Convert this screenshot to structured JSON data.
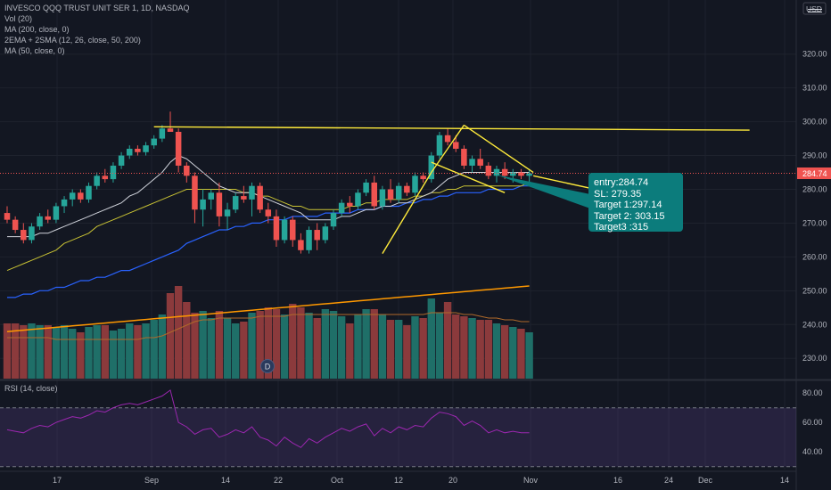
{
  "legend": {
    "symbol": "INVESCO QQQ TRUST UNIT SER 1, 1D, NASDAQ",
    "vol": "Vol (20)",
    "ma200": "MA (200, close, 0)",
    "ema_sma": "2EMA + 2SMA (12, 26, close, 50, 200)",
    "ma50": "MA (50, close, 0)",
    "rsi": "RSI (14, close)"
  },
  "currency": "USD",
  "last_price_label": "284.74",
  "event_badge": "D",
  "callout": {
    "lines": [
      "entry:284.74",
      "SL: 279.35",
      "Target 1:297.14",
      "Target 2: 303.15",
      "Target3 :315"
    ]
  },
  "colors": {
    "background": "#131722",
    "up": "#26a69a",
    "down": "#ef5350",
    "trendline": "#ffeb3b",
    "ma_blue": "#2962ff",
    "ma_yellow": "#c9c334",
    "ema_white": "#d1d4dc",
    "vol_ma": "#ff9800",
    "rsi_line": "#9c27b0",
    "callout_bg": "#0c7c7c"
  },
  "chart_data": {
    "type": "candlestick",
    "price_axis": {
      "ticks": [
        320,
        310,
        300,
        290,
        280,
        270,
        260,
        250,
        240,
        230
      ],
      "range": [
        224,
        336
      ]
    },
    "rsi_axis": {
      "ticks": [
        80,
        60,
        40
      ],
      "range": [
        28,
        88
      ],
      "levels": [
        70,
        30
      ]
    },
    "x_axis_labels": [
      "17",
      "Sep",
      "14",
      "22",
      "Oct",
      "12",
      "20",
      "Nov",
      "16",
      "24",
      "Dec",
      "14"
    ],
    "candles": [
      {
        "o": 273,
        "h": 275,
        "l": 270,
        "c": 271
      },
      {
        "o": 271,
        "h": 272,
        "l": 267,
        "c": 268
      },
      {
        "o": 268,
        "h": 270,
        "l": 264,
        "c": 265
      },
      {
        "o": 265,
        "h": 270,
        "l": 264,
        "c": 269
      },
      {
        "o": 269,
        "h": 273,
        "l": 268,
        "c": 272
      },
      {
        "o": 272,
        "h": 274,
        "l": 270,
        "c": 271
      },
      {
        "o": 271,
        "h": 276,
        "l": 270,
        "c": 275
      },
      {
        "o": 275,
        "h": 278,
        "l": 273,
        "c": 277
      },
      {
        "o": 277,
        "h": 280,
        "l": 275,
        "c": 279
      },
      {
        "o": 279,
        "h": 280,
        "l": 276,
        "c": 277
      },
      {
        "o": 277,
        "h": 282,
        "l": 276,
        "c": 281
      },
      {
        "o": 281,
        "h": 285,
        "l": 280,
        "c": 284
      },
      {
        "o": 284,
        "h": 286,
        "l": 282,
        "c": 283
      },
      {
        "o": 283,
        "h": 288,
        "l": 282,
        "c": 287
      },
      {
        "o": 287,
        "h": 291,
        "l": 286,
        "c": 290
      },
      {
        "o": 290,
        "h": 293,
        "l": 289,
        "c": 292
      },
      {
        "o": 292,
        "h": 293,
        "l": 290,
        "c": 291
      },
      {
        "o": 291,
        "h": 294,
        "l": 290,
        "c": 293
      },
      {
        "o": 293,
        "h": 296,
        "l": 292,
        "c": 295
      },
      {
        "o": 295,
        "h": 299,
        "l": 294,
        "c": 298
      },
      {
        "o": 298,
        "h": 303,
        "l": 297,
        "c": 297
      },
      {
        "o": 297,
        "h": 298,
        "l": 285,
        "c": 287
      },
      {
        "o": 287,
        "h": 288,
        "l": 282,
        "c": 284
      },
      {
        "o": 284,
        "h": 285,
        "l": 270,
        "c": 274
      },
      {
        "o": 274,
        "h": 280,
        "l": 269,
        "c": 277
      },
      {
        "o": 277,
        "h": 280,
        "l": 274,
        "c": 279
      },
      {
        "o": 279,
        "h": 282,
        "l": 269,
        "c": 272
      },
      {
        "o": 272,
        "h": 276,
        "l": 268,
        "c": 274
      },
      {
        "o": 274,
        "h": 279,
        "l": 273,
        "c": 278
      },
      {
        "o": 278,
        "h": 281,
        "l": 276,
        "c": 277
      },
      {
        "o": 277,
        "h": 282,
        "l": 272,
        "c": 281
      },
      {
        "o": 281,
        "h": 282,
        "l": 273,
        "c": 274
      },
      {
        "o": 274,
        "h": 276,
        "l": 270,
        "c": 272
      },
      {
        "o": 272,
        "h": 274,
        "l": 263,
        "c": 265
      },
      {
        "o": 265,
        "h": 272,
        "l": 264,
        "c": 271
      },
      {
        "o": 271,
        "h": 272,
        "l": 263,
        "c": 265
      },
      {
        "o": 265,
        "h": 267,
        "l": 261,
        "c": 262
      },
      {
        "o": 262,
        "h": 269,
        "l": 261,
        "c": 268
      },
      {
        "o": 268,
        "h": 270,
        "l": 262,
        "c": 265
      },
      {
        "o": 265,
        "h": 270,
        "l": 264,
        "c": 269
      },
      {
        "o": 269,
        "h": 274,
        "l": 268,
        "c": 273
      },
      {
        "o": 273,
        "h": 277,
        "l": 272,
        "c": 276
      },
      {
        "o": 276,
        "h": 278,
        "l": 273,
        "c": 275
      },
      {
        "o": 275,
        "h": 280,
        "l": 274,
        "c": 279
      },
      {
        "o": 279,
        "h": 283,
        "l": 278,
        "c": 282
      },
      {
        "o": 282,
        "h": 284,
        "l": 274,
        "c": 275
      },
      {
        "o": 275,
        "h": 281,
        "l": 274,
        "c": 280
      },
      {
        "o": 280,
        "h": 283,
        "l": 276,
        "c": 277
      },
      {
        "o": 277,
        "h": 282,
        "l": 276,
        "c": 281
      },
      {
        "o": 281,
        "h": 282,
        "l": 278,
        "c": 279
      },
      {
        "o": 279,
        "h": 285,
        "l": 278,
        "c": 284
      },
      {
        "o": 284,
        "h": 285,
        "l": 282,
        "c": 283
      },
      {
        "o": 283,
        "h": 291,
        "l": 282,
        "c": 290
      },
      {
        "o": 290,
        "h": 297,
        "l": 289,
        "c": 296
      },
      {
        "o": 296,
        "h": 298,
        "l": 293,
        "c": 294
      },
      {
        "o": 294,
        "h": 296,
        "l": 291,
        "c": 292
      },
      {
        "o": 292,
        "h": 293,
        "l": 286,
        "c": 287
      },
      {
        "o": 287,
        "h": 290,
        "l": 285,
        "c": 289
      },
      {
        "o": 289,
        "h": 292,
        "l": 286,
        "c": 287
      },
      {
        "o": 287,
        "h": 288,
        "l": 283,
        "c": 284
      },
      {
        "o": 284,
        "h": 287,
        "l": 282,
        "c": 286
      },
      {
        "o": 286,
        "h": 288,
        "l": 283,
        "c": 284
      },
      {
        "o": 284,
        "h": 286,
        "l": 282,
        "c": 285
      },
      {
        "o": 285,
        "h": 286,
        "l": 283,
        "c": 284
      },
      {
        "o": 284,
        "h": 286,
        "l": 282,
        "c": 284.74
      }
    ],
    "volume": [
      31,
      31,
      30,
      31,
      30,
      30,
      29,
      30,
      28,
      26,
      29,
      30,
      30,
      27,
      28,
      31,
      30,
      31,
      33,
      36,
      48,
      52,
      43,
      37,
      38,
      34,
      38,
      34,
      31,
      32,
      37,
      38,
      40,
      39,
      36,
      42,
      40,
      37,
      34,
      39,
      38,
      35,
      31,
      36,
      39,
      39,
      36,
      33,
      33,
      30,
      35,
      34,
      45,
      37,
      43,
      36,
      35,
      34,
      33,
      33,
      31,
      30,
      29,
      28,
      26
    ],
    "volume_scale_max": 55,
    "ema_white": [
      266,
      266,
      266,
      266,
      267,
      267,
      268,
      269,
      270,
      271,
      272,
      273,
      274,
      275,
      276,
      278,
      279,
      281,
      283,
      285,
      288,
      290,
      289,
      287,
      285,
      283,
      281,
      280,
      279,
      279,
      279,
      278,
      277,
      276,
      275,
      274,
      273,
      271,
      271,
      271,
      271,
      272,
      272,
      273,
      274,
      274,
      275,
      275,
      276,
      276,
      277,
      278,
      279,
      281,
      283,
      284,
      285,
      285,
      285,
      285,
      285,
      285,
      285,
      285,
      285
    ],
    "sma50_yellow": [
      256,
      257,
      258,
      259,
      260,
      261,
      262,
      264,
      265,
      266,
      267,
      269,
      270,
      271,
      272,
      273,
      274,
      275,
      276,
      277,
      278,
      279,
      280,
      280,
      280,
      280,
      280,
      280,
      280,
      279,
      279,
      278,
      278,
      277,
      276,
      275,
      275,
      274,
      274,
      274,
      274,
      274,
      275,
      275,
      276,
      276,
      277,
      277,
      277,
      277,
      278,
      278,
      279,
      279,
      280,
      280,
      281,
      281,
      281,
      281,
      281,
      281,
      281,
      281,
      282
    ],
    "ma50_blue": [
      248,
      248,
      249,
      249,
      250,
      250,
      251,
      251,
      252,
      253,
      253,
      254,
      254,
      255,
      256,
      256,
      257,
      258,
      259,
      260,
      261,
      262,
      264,
      265,
      266,
      267,
      268,
      268,
      269,
      269,
      270,
      270,
      271,
      271,
      271,
      272,
      272,
      272,
      272,
      273,
      273,
      273,
      273,
      274,
      274,
      274,
      275,
      275,
      275,
      276,
      276,
      277,
      277,
      278,
      278,
      279,
      279,
      279,
      279,
      280,
      280,
      280,
      280,
      281,
      281
    ],
    "vol_ma_orange": [
      26.4,
      26.8,
      27.2,
      27.6,
      28.0,
      28.4,
      28.8,
      29.2,
      29.6,
      30.0,
      30.4,
      30.8,
      31.2,
      31.6,
      32.0,
      32.4,
      32.8,
      33.2,
      33.6,
      34.0,
      34.4,
      34.8,
      35.2,
      35.6,
      36.0,
      36.4,
      36.8,
      37.2,
      37.6,
      38.0,
      38.4,
      38.8,
      39.2,
      39.6,
      40.0,
      40.4,
      40.8,
      41.2,
      41.6,
      42.0,
      42.4,
      42.8,
      43.2,
      43.6,
      44.0,
      44.4,
      44.8,
      45.2,
      45.6,
      46.0,
      46.4,
      46.8,
      47.2,
      47.6,
      48.0,
      48.4,
      48.8,
      49.2,
      49.6,
      50.0,
      50.4,
      50.8,
      51.2,
      51.6,
      52.0
    ],
    "vol_avg_line": [
      23,
      23,
      23,
      23,
      23,
      23,
      22,
      22,
      22,
      22,
      22,
      22,
      22,
      22,
      22,
      22,
      22,
      23,
      23,
      24,
      26,
      28,
      30,
      32,
      33,
      33,
      34,
      34,
      34,
      34,
      34,
      35,
      35,
      35,
      35,
      36,
      36,
      36,
      36,
      36,
      36,
      36,
      36,
      36,
      36,
      36,
      36,
      36,
      36,
      36,
      36,
      36,
      37,
      37,
      37,
      37,
      36,
      36,
      35,
      34,
      34,
      33,
      33,
      32,
      32
    ],
    "rsi": [
      55,
      54,
      53,
      56,
      58,
      57,
      60,
      62,
      64,
      63,
      65,
      68,
      67,
      70,
      72,
      73,
      72,
      74,
      76,
      78,
      82,
      60,
      57,
      52,
      55,
      56,
      50,
      52,
      55,
      53,
      57,
      50,
      48,
      44,
      50,
      46,
      43,
      49,
      46,
      50,
      53,
      56,
      54,
      57,
      59,
      51,
      56,
      53,
      57,
      55,
      58,
      57,
      63,
      67,
      66,
      64,
      58,
      61,
      58,
      53,
      55,
      53,
      54,
      53,
      53
    ],
    "trendlines": [
      {
        "from": [
          18,
          298.5
        ],
        "to": [
          91,
          297.5
        ]
      },
      {
        "from": [
          46,
          261
        ],
        "to": [
          52,
          285
        ]
      },
      {
        "from": [
          52,
          285
        ],
        "to": [
          56,
          299
        ]
      },
      {
        "from": [
          56,
          299
        ],
        "to": [
          64.5,
          285
        ]
      },
      {
        "from": [
          52,
          288
        ],
        "to": [
          61,
          279
        ]
      },
      {
        "from": [
          64.5,
          284
        ],
        "to": [
          74,
          279
        ]
      }
    ]
  }
}
